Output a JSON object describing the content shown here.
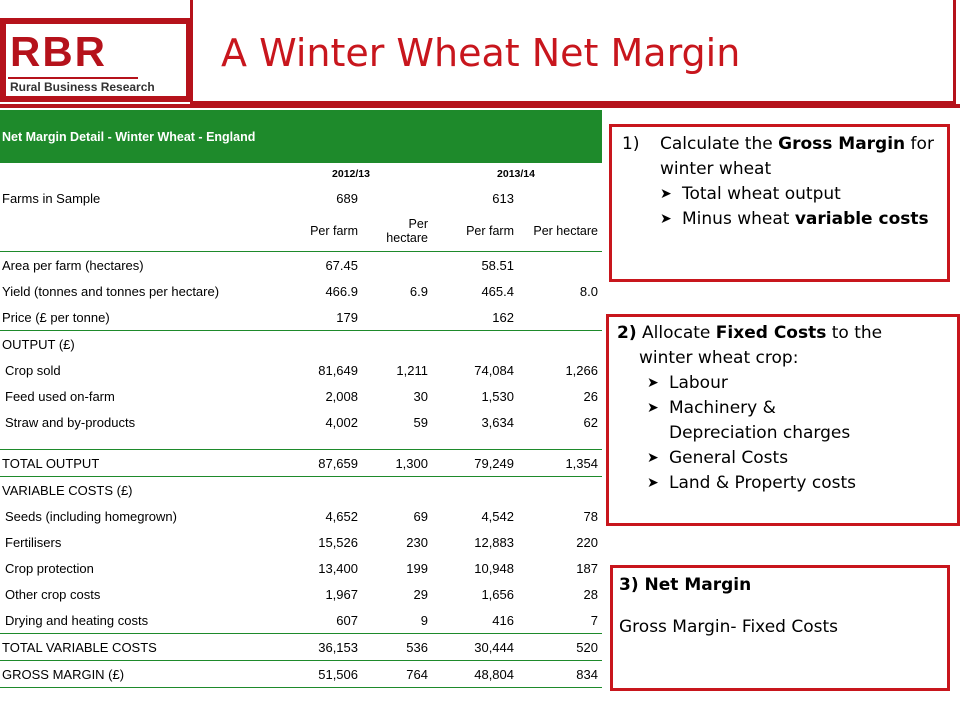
{
  "header": {
    "logo_main": "RBR",
    "logo_sub": "Rural Business Research",
    "title": "A Winter Wheat Net Margin"
  },
  "table": {
    "heading": "Net Margin Detail - Winter Wheat - England",
    "years": [
      "2012/13",
      "2013/14"
    ],
    "farms_label": "Farms in Sample",
    "farms": [
      "689",
      "613"
    ],
    "unit_per_farm": "Per farm",
    "unit_per_hectare": "Per hectare",
    "rows": [
      {
        "label": "Area per farm (hectares)",
        "v": [
          "67.45",
          "",
          "58.51",
          ""
        ]
      },
      {
        "label": "Yield (tonnes and tonnes per hectare)",
        "v": [
          "466.9",
          "6.9",
          "465.4",
          "8.0"
        ]
      },
      {
        "label": "Price (£ per tonne)",
        "v": [
          "179",
          "",
          "162",
          ""
        ]
      }
    ],
    "output_heading": "OUTPUT (£)",
    "output_rows": [
      {
        "label": "Crop sold",
        "v": [
          "81,649",
          "1,211",
          "74,084",
          "1,266"
        ]
      },
      {
        "label": "Feed used on-farm",
        "v": [
          "2,008",
          "30",
          "1,530",
          "26"
        ]
      },
      {
        "label": "Straw and by-products",
        "v": [
          "4,002",
          "59",
          "3,634",
          "62"
        ]
      }
    ],
    "total_output": {
      "label": "TOTAL OUTPUT",
      "v": [
        "87,659",
        "1,300",
        "79,249",
        "1,354"
      ]
    },
    "variable_heading": "VARIABLE COSTS (£)",
    "variable_rows": [
      {
        "label": "Seeds (including homegrown)",
        "v": [
          "4,652",
          "69",
          "4,542",
          "78"
        ]
      },
      {
        "label": "Fertilisers",
        "v": [
          "15,526",
          "230",
          "12,883",
          "220"
        ]
      },
      {
        "label": "Crop protection",
        "v": [
          "13,400",
          "199",
          "10,948",
          "187"
        ]
      },
      {
        "label": "Other crop costs",
        "v": [
          "1,967",
          "29",
          "1,656",
          "28"
        ]
      },
      {
        "label": "Drying and heating costs",
        "v": [
          "607",
          "9",
          "416",
          "7"
        ]
      }
    ],
    "total_variable": {
      "label": "TOTAL VARIABLE COSTS",
      "v": [
        "36,153",
        "536",
        "30,444",
        "520"
      ]
    },
    "gross_margin": {
      "label": "GROSS MARGIN (£)",
      "v": [
        "51,506",
        "764",
        "48,804",
        "834"
      ]
    }
  },
  "box1": {
    "number": "1)",
    "text_before": "Calculate the ",
    "text_bold": "Gross Margin",
    "text_after": " for winter wheat",
    "bullet1": "Total wheat output",
    "bullet2_before": "Minus wheat ",
    "bullet2_bold": "variable costs"
  },
  "box2": {
    "number": "2)",
    "text_before": " Allocate ",
    "text_bold": "Fixed Costs",
    "text_after": " to the",
    "line2": "winter wheat crop:",
    "bullets": [
      "Labour",
      "Machinery &",
      "Depreciation charges",
      "General Costs",
      "Land & Property costs"
    ]
  },
  "box3": {
    "heading": "3) Net Margin",
    "text": "Gross Margin- Fixed Costs"
  },
  "colors": {
    "brand_red": "#c8161d",
    "table_green": "#1e8a2b"
  }
}
